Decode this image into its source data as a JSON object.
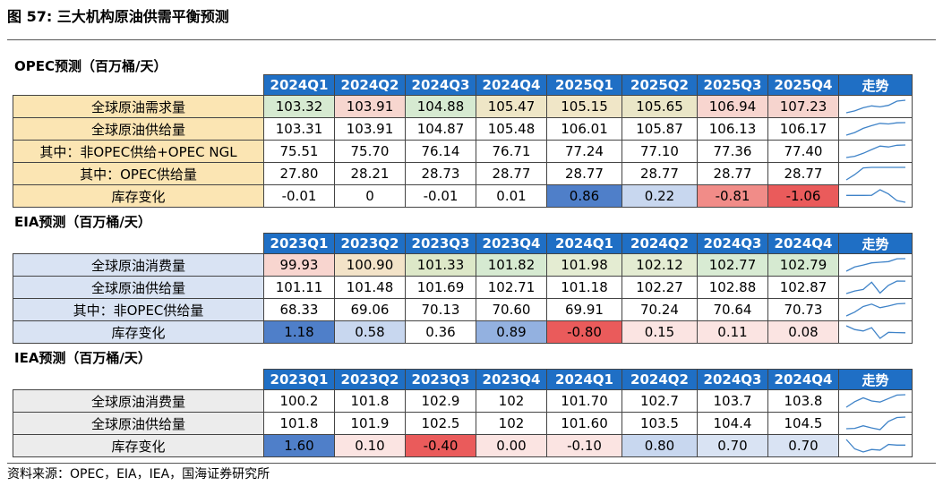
{
  "figure_title": "图 57:  三大机构原油供需平衡预测",
  "source": "资料来源：OPEC，EIA，IEA，国海证券研究所",
  "trend_label": "走势",
  "colors": {
    "header_blue": "#1f6fc5",
    "opec_label_bg": "#fbe5b3",
    "eia_label_bg": "#d9e3f3",
    "iea_label_bg": "#ececec",
    "spark_line": "#3f83c8"
  },
  "chart_data": [
    {
      "type": "table",
      "section_title": "OPEC预测（百万桶/天）",
      "quarters": [
        "2024Q1",
        "2024Q2",
        "2024Q3",
        "2024Q4",
        "2025Q1",
        "2025Q2",
        "2025Q3",
        "2025Q4"
      ],
      "rows": [
        {
          "label": "全球原油需求量",
          "display": [
            "103.32",
            "103.91",
            "104.88",
            "105.47",
            "105.15",
            "105.65",
            "106.94",
            "107.23"
          ],
          "values": [
            103.32,
            103.91,
            104.88,
            105.47,
            105.15,
            105.65,
            106.94,
            107.23
          ],
          "cell_colors": [
            "#d6ead1",
            "#f7d6cf",
            "#d6ead1",
            "#eee6c6",
            "#f0e6c7",
            "#eae6c7",
            "#f8d5cf",
            "#f6d4ce"
          ]
        },
        {
          "label": "全球原油供给量",
          "display": [
            "103.31",
            "103.91",
            "104.87",
            "105.48",
            "106.01",
            "105.87",
            "106.13",
            "106.17"
          ],
          "values": [
            103.31,
            103.91,
            104.87,
            105.48,
            106.01,
            105.87,
            106.13,
            106.17
          ],
          "cell_colors": [
            "#ffffff",
            "#ffffff",
            "#ffffff",
            "#ffffff",
            "#ffffff",
            "#ffffff",
            "#ffffff",
            "#ffffff"
          ]
        },
        {
          "label": "其中：非OPEC供给+OPEC NGL",
          "display": [
            "75.51",
            "75.70",
            "76.14",
            "76.71",
            "77.24",
            "77.10",
            "77.36",
            "77.40"
          ],
          "values": [
            75.51,
            75.7,
            76.14,
            76.71,
            77.24,
            77.1,
            77.36,
            77.4
          ],
          "cell_colors": [
            "#ffffff",
            "#ffffff",
            "#ffffff",
            "#ffffff",
            "#ffffff",
            "#ffffff",
            "#ffffff",
            "#ffffff"
          ]
        },
        {
          "label": "其中：OPEC供给量",
          "display": [
            "27.80",
            "28.21",
            "28.73",
            "28.77",
            "28.77",
            "28.77",
            "28.77",
            "28.77"
          ],
          "values": [
            27.8,
            28.21,
            28.73,
            28.77,
            28.77,
            28.77,
            28.77,
            28.77
          ],
          "cell_colors": [
            "#ffffff",
            "#ffffff",
            "#ffffff",
            "#ffffff",
            "#ffffff",
            "#ffffff",
            "#ffffff",
            "#ffffff"
          ]
        },
        {
          "label": "库存变化",
          "display": [
            "-0.01",
            "0",
            "-0.01",
            "0.01",
            "0.86",
            "0.22",
            "-0.81",
            "-1.06"
          ],
          "values": [
            -0.01,
            0,
            -0.01,
            0.01,
            0.86,
            0.22,
            -0.81,
            -1.06
          ],
          "cell_colors": [
            "#ffffff",
            "#ffffff",
            "#ffffff",
            "#ffffff",
            "#4f7fc9",
            "#c8d7ef",
            "#f18c88",
            "#ea5b5b"
          ]
        }
      ]
    },
    {
      "type": "table",
      "section_title": "EIA预测（百万桶/天）",
      "quarters": [
        "2023Q1",
        "2023Q2",
        "2023Q3",
        "2023Q4",
        "2024Q1",
        "2024Q2",
        "2024Q3",
        "2024Q4"
      ],
      "rows": [
        {
          "label": "全球原油消费量",
          "display": [
            "99.93",
            "100.90",
            "101.33",
            "101.82",
            "101.98",
            "102.12",
            "102.77",
            "102.79"
          ],
          "values": [
            99.93,
            100.9,
            101.33,
            101.82,
            101.98,
            102.12,
            102.77,
            102.79
          ],
          "cell_colors": [
            "#f8d5cf",
            "#f3e3c8",
            "#dde8c8",
            "#d6ead1",
            "#e4ecd2",
            "#e4ecd2",
            "#d8ebd3",
            "#d6ead1"
          ]
        },
        {
          "label": "全球原油供给量",
          "display": [
            "101.11",
            "101.48",
            "101.69",
            "102.71",
            "101.18",
            "102.27",
            "102.88",
            "102.87"
          ],
          "values": [
            101.11,
            101.48,
            101.69,
            102.71,
            101.18,
            102.27,
            102.88,
            102.87
          ],
          "cell_colors": [
            "#ffffff",
            "#ffffff",
            "#ffffff",
            "#ffffff",
            "#ffffff",
            "#ffffff",
            "#ffffff",
            "#ffffff"
          ]
        },
        {
          "label": "其中：非OPEC供给量",
          "display": [
            "68.33",
            "69.06",
            "70.13",
            "70.60",
            "69.91",
            "70.24",
            "70.64",
            "70.73"
          ],
          "values": [
            68.33,
            69.06,
            70.13,
            70.6,
            69.91,
            70.24,
            70.64,
            70.73
          ],
          "cell_colors": [
            "#ffffff",
            "#ffffff",
            "#ffffff",
            "#ffffff",
            "#ffffff",
            "#ffffff",
            "#ffffff",
            "#ffffff"
          ]
        },
        {
          "label": "库存变化",
          "display": [
            "1.18",
            "0.58",
            "0.36",
            "0.89",
            "-0.80",
            "0.15",
            "0.11",
            "0.08"
          ],
          "values": [
            1.18,
            0.58,
            0.36,
            0.89,
            -0.8,
            0.15,
            0.11,
            0.08
          ],
          "cell_colors": [
            "#4f7fc9",
            "#c8d7ef",
            "#ffffff",
            "#93b1e0",
            "#ea5b5b",
            "#fbe4e2",
            "#fbe4e2",
            "#fbe4e2"
          ]
        }
      ]
    },
    {
      "type": "table",
      "section_title": "IEA预测（百万桶/天）",
      "quarters": [
        "2023Q1",
        "2023Q2",
        "2023Q3",
        "2023Q4",
        "2024Q1",
        "2024Q2",
        "2024Q3",
        "2024Q4"
      ],
      "rows": [
        {
          "label": "全球原油消费量",
          "display": [
            "100.2",
            "101.8",
            "102.9",
            "102",
            "101.70",
            "102.7",
            "103.7",
            "103.8"
          ],
          "values": [
            100.2,
            101.8,
            102.9,
            102,
            101.7,
            102.7,
            103.7,
            103.8
          ],
          "cell_colors": [
            "#ffffff",
            "#ffffff",
            "#ffffff",
            "#ffffff",
            "#ffffff",
            "#ffffff",
            "#ffffff",
            "#ffffff"
          ]
        },
        {
          "label": "全球原油供给量",
          "display": [
            "101.8",
            "101.9",
            "102.5",
            "102",
            "101.60",
            "103.5",
            "104.4",
            "104.5"
          ],
          "values": [
            101.8,
            101.9,
            102.5,
            102,
            101.6,
            103.5,
            104.4,
            104.5
          ],
          "cell_colors": [
            "#ffffff",
            "#ffffff",
            "#ffffff",
            "#ffffff",
            "#ffffff",
            "#ffffff",
            "#ffffff",
            "#ffffff"
          ]
        },
        {
          "label": "库存变化",
          "display": [
            "1.60",
            "0.10",
            "-0.40",
            "0.00",
            "-0.10",
            "0.80",
            "0.70",
            "0.70"
          ],
          "values": [
            1.6,
            0.1,
            -0.4,
            0.0,
            -0.1,
            0.8,
            0.7,
            0.7
          ],
          "cell_colors": [
            "#4f7fc9",
            "#fbe4e2",
            "#ea5b5b",
            "#fbe4e2",
            "#fbe4e2",
            "#c8d7ef",
            "#d9e3f3",
            "#d9e3f3"
          ]
        }
      ]
    }
  ]
}
